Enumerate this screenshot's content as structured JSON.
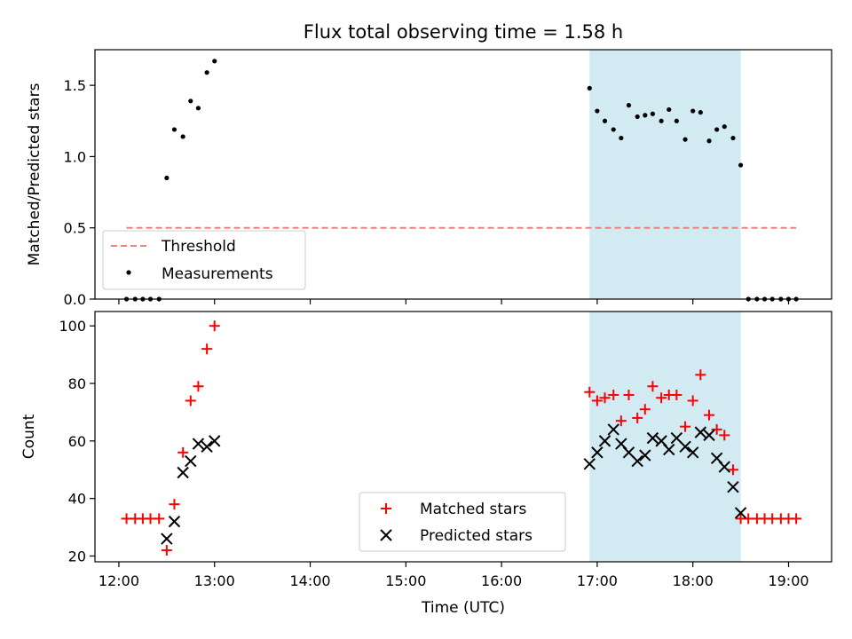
{
  "chart_data": [
    {
      "type": "scatter",
      "title": "Flux total observing time = 1.58 h",
      "ylabel": "Matched/Predicted stars",
      "xlabel": "",
      "xlim": [
        11.75,
        19.45
      ],
      "ylim": [
        0,
        1.75
      ],
      "xticks": [
        12,
        13,
        14,
        15,
        16,
        17,
        18,
        19
      ],
      "yticks": [
        0.0,
        0.5,
        1.0,
        1.5
      ],
      "ytick_labels": [
        "0.0",
        "0.5",
        "1.0",
        "1.5"
      ],
      "shaded_span": [
        16.92,
        18.5
      ],
      "shaded_color": "#add8e6",
      "threshold": {
        "name": "Threshold",
        "value": 0.5,
        "x_range": [
          12.08,
          19.08
        ],
        "color": "#f08080",
        "style": "dashed"
      },
      "series": [
        {
          "name": "Measurements",
          "marker": "dot",
          "color": "#000000",
          "x": [
            12.08,
            12.17,
            12.25,
            12.33,
            12.42,
            12.5,
            12.58,
            12.67,
            12.75,
            12.83,
            12.92,
            13.0,
            16.92,
            17.0,
            17.08,
            17.17,
            17.25,
            17.33,
            17.42,
            17.5,
            17.58,
            17.67,
            17.75,
            17.83,
            17.92,
            18.0,
            18.08,
            18.17,
            18.25,
            18.33,
            18.42,
            18.5,
            18.58,
            18.67,
            18.75,
            18.83,
            18.92,
            19.0,
            19.08
          ],
          "y": [
            0,
            0,
            0,
            0,
            0,
            0.85,
            1.19,
            1.14,
            1.39,
            1.34,
            1.59,
            1.67,
            1.48,
            1.32,
            1.25,
            1.19,
            1.13,
            1.36,
            1.28,
            1.29,
            1.3,
            1.25,
            1.33,
            1.25,
            1.12,
            1.32,
            1.31,
            1.11,
            1.19,
            1.21,
            1.13,
            0.94,
            0,
            0,
            0,
            0,
            0,
            0,
            0
          ]
        }
      ],
      "legend": "lower-left"
    },
    {
      "type": "scatter",
      "title": "",
      "ylabel": "Count",
      "xlabel": "Time (UTC)",
      "xlim": [
        11.75,
        19.45
      ],
      "ylim": [
        18,
        105
      ],
      "xticks": [
        12,
        13,
        14,
        15,
        16,
        17,
        18,
        19
      ],
      "xtick_labels": [
        "12:00",
        "13:00",
        "14:00",
        "15:00",
        "16:00",
        "17:00",
        "18:00",
        "19:00"
      ],
      "yticks": [
        20,
        40,
        60,
        80,
        100
      ],
      "ytick_labels": [
        "20",
        "40",
        "60",
        "80",
        "100"
      ],
      "shaded_span": [
        16.92,
        18.5
      ],
      "shaded_color": "#add8e6",
      "series": [
        {
          "name": "Matched stars",
          "marker": "plus",
          "color": "#ff0000",
          "x": [
            12.08,
            12.17,
            12.25,
            12.33,
            12.42,
            12.5,
            12.58,
            12.67,
            12.75,
            12.83,
            12.92,
            13.0,
            16.92,
            17.0,
            17.08,
            17.17,
            17.25,
            17.33,
            17.42,
            17.5,
            17.58,
            17.67,
            17.75,
            17.83,
            17.92,
            18.0,
            18.08,
            18.17,
            18.25,
            18.33,
            18.42,
            18.5,
            18.58,
            18.67,
            18.75,
            18.83,
            18.92,
            19.0,
            19.08
          ],
          "y": [
            33,
            33,
            33,
            33,
            33,
            22,
            38,
            56,
            74,
            79,
            92,
            100,
            77,
            74,
            75,
            76,
            67,
            76,
            68,
            71,
            79,
            75,
            76,
            76,
            65,
            74,
            83,
            69,
            64,
            62,
            50,
            33,
            33,
            33,
            33,
            33,
            33,
            33,
            33
          ]
        },
        {
          "name": "Predicted stars",
          "marker": "x",
          "color": "#000000",
          "x": [
            12.5,
            12.58,
            12.67,
            12.75,
            12.83,
            12.92,
            13.0,
            16.92,
            17.0,
            17.08,
            17.17,
            17.25,
            17.33,
            17.42,
            17.5,
            17.58,
            17.67,
            17.75,
            17.83,
            17.92,
            18.0,
            18.08,
            18.17,
            18.25,
            18.33,
            18.42,
            18.5
          ],
          "y": [
            26,
            32,
            49,
            53,
            59,
            58,
            60,
            52,
            56,
            60,
            64,
            59,
            56,
            53,
            55,
            61,
            60,
            57,
            61,
            58,
            56,
            63,
            62,
            54,
            51,
            44,
            35
          ]
        }
      ],
      "legend": "lower-center"
    }
  ]
}
